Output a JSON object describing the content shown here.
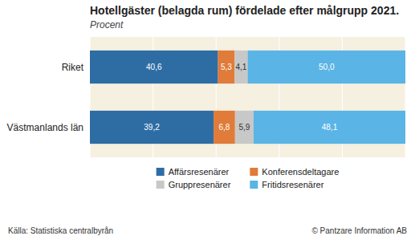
{
  "chart_data": {
    "type": "bar",
    "orientation": "horizontal",
    "stacked": true,
    "title": "Hotellgäster (belagda rum) fördelade efter målgrupp 2021.",
    "subtitle": "Procent",
    "categories": [
      "Riket",
      "Västmanlands län"
    ],
    "series": [
      {
        "name": "Affärsresenärer",
        "color": "#2e6da4",
        "values": [
          40.6,
          39.2
        ],
        "value_labels": [
          "40,6",
          "39,2"
        ]
      },
      {
        "name": "Konferensdeltagare",
        "color": "#e07b39",
        "values": [
          5.3,
          6.8
        ],
        "value_labels": [
          "5,3",
          "6,8"
        ]
      },
      {
        "name": "Gruppresenärer",
        "color": "#c8c8c8",
        "values": [
          4.1,
          5.9
        ],
        "value_labels": [
          "4,1",
          "5,9"
        ]
      },
      {
        "name": "Fritidsresenärer",
        "color": "#5ab4e5",
        "values": [
          50.0,
          48.1
        ],
        "value_labels": [
          "50,0",
          "48,1"
        ]
      }
    ],
    "xlim": [
      0,
      100
    ],
    "xticks": [
      0,
      20,
      40,
      60,
      80,
      100
    ],
    "grid": true,
    "tick_labels": "y",
    "data_labels": true,
    "legend": "bottom",
    "annotations": [
      "Källa: Statistiska centralbyrån",
      "© Pantzare Information AB"
    ]
  }
}
